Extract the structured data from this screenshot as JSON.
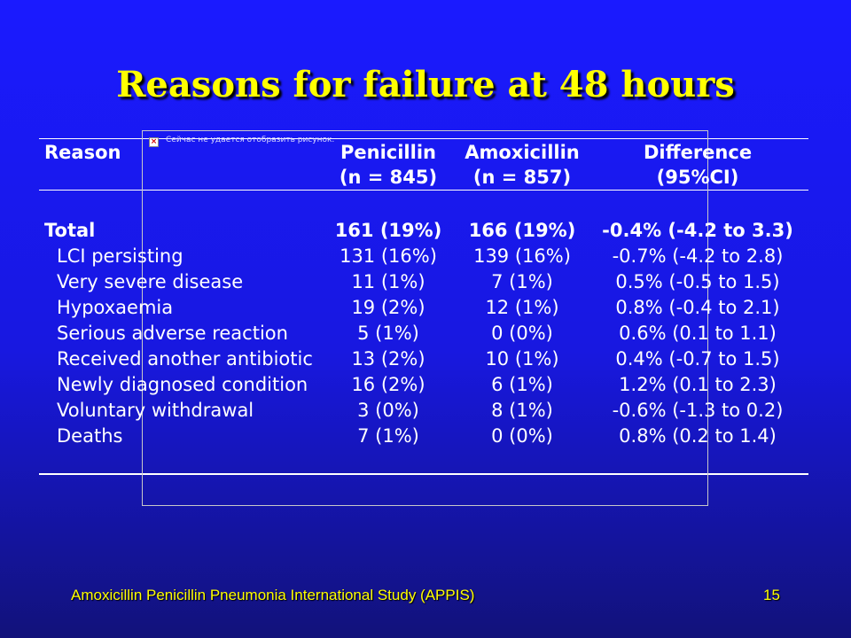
{
  "slide": {
    "title": "Reasons for failure at 48 hours",
    "footer_left": "Amoxicillin Penicillin Pneumonia International Study (APPIS)",
    "page_number": "15",
    "broken_image_text": "Сейчас не удается отобразить рисунок."
  },
  "table": {
    "headers": {
      "reason": "Reason",
      "penicillin_line1": "Penicillin",
      "penicillin_line2": "(n = 845)",
      "amoxicillin_line1": "Amoxicillin",
      "amoxicillin_line2": "(n = 857)",
      "difference_line1": "Difference",
      "difference_line2": "(95%CI)"
    },
    "rows": [
      {
        "reason": "Total",
        "penicillin": "161 (19%)",
        "amoxicillin": "166 (19%)",
        "difference": "-0.4% (-4.2 to 3.3)"
      },
      {
        "reason": "LCI persisting",
        "penicillin": "131 (16%)",
        "amoxicillin": "139 (16%)",
        "difference": "-0.7% (-4.2 to 2.8)"
      },
      {
        "reason": "Very severe disease",
        "penicillin": "11 (1%)",
        "amoxicillin": "7 (1%)",
        "difference": "0.5% (-0.5 to 1.5)"
      },
      {
        "reason": "Hypoxaemia",
        "penicillin": "19 (2%)",
        "amoxicillin": "12 (1%)",
        "difference": "0.8% (-0.4 to 2.1)"
      },
      {
        "reason": "Serious adverse reaction",
        "penicillin": "5 (1%)",
        "amoxicillin": "0 (0%)",
        "difference": "0.6% (0.1 to 1.1)"
      },
      {
        "reason": "Received another antibiotic",
        "penicillin": "13 (2%)",
        "amoxicillin": "10 (1%)",
        "difference": "0.4% (-0.7 to 1.5)"
      },
      {
        "reason": "Newly diagnosed condition",
        "penicillin": "16 (2%)",
        "amoxicillin": "6 (1%)",
        "difference": "1.2% (0.1 to 2.3)"
      },
      {
        "reason": "Voluntary withdrawal",
        "penicillin": "3 (0%)",
        "amoxicillin": "8 (1%)",
        "difference": "-0.6% (-1.3 to 0.2)"
      },
      {
        "reason": "Deaths",
        "penicillin": "7 (1%)",
        "amoxicillin": "0 (0%)",
        "difference": "0.8% (0.2 to 1.4)"
      }
    ]
  },
  "colors": {
    "background": "#1a1aff",
    "title": "#ffff00",
    "text": "#ffffff",
    "footer": "#ffff00"
  }
}
